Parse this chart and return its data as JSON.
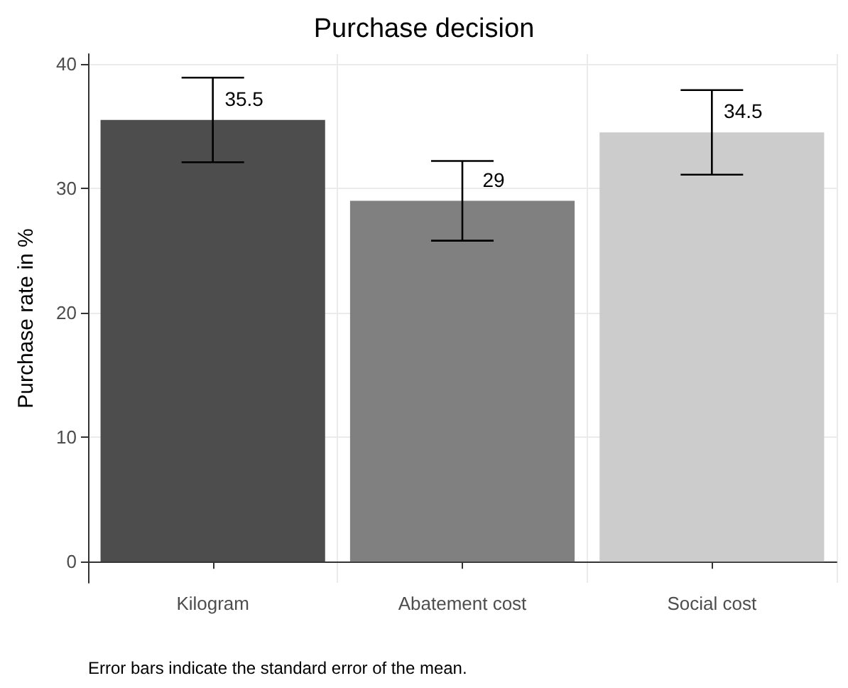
{
  "chart_data": {
    "type": "bar",
    "title": "Purchase decision",
    "ylabel": "Purchase rate in %",
    "categories": [
      "Kilogram",
      "Abatement cost",
      "Social cost"
    ],
    "values": [
      35.5,
      29,
      34.5
    ],
    "colors": [
      "#4d4d4d",
      "#808080",
      "#cccccc"
    ],
    "errors": [
      3.4,
      3.2,
      3.4
    ],
    "data_labels": true,
    "ylim": [
      -1.7,
      40.8
    ],
    "yticks": [
      0,
      10,
      20,
      30,
      40
    ],
    "grid": true,
    "annotations": [
      "Error bars indicate the standard error of the mean."
    ]
  }
}
